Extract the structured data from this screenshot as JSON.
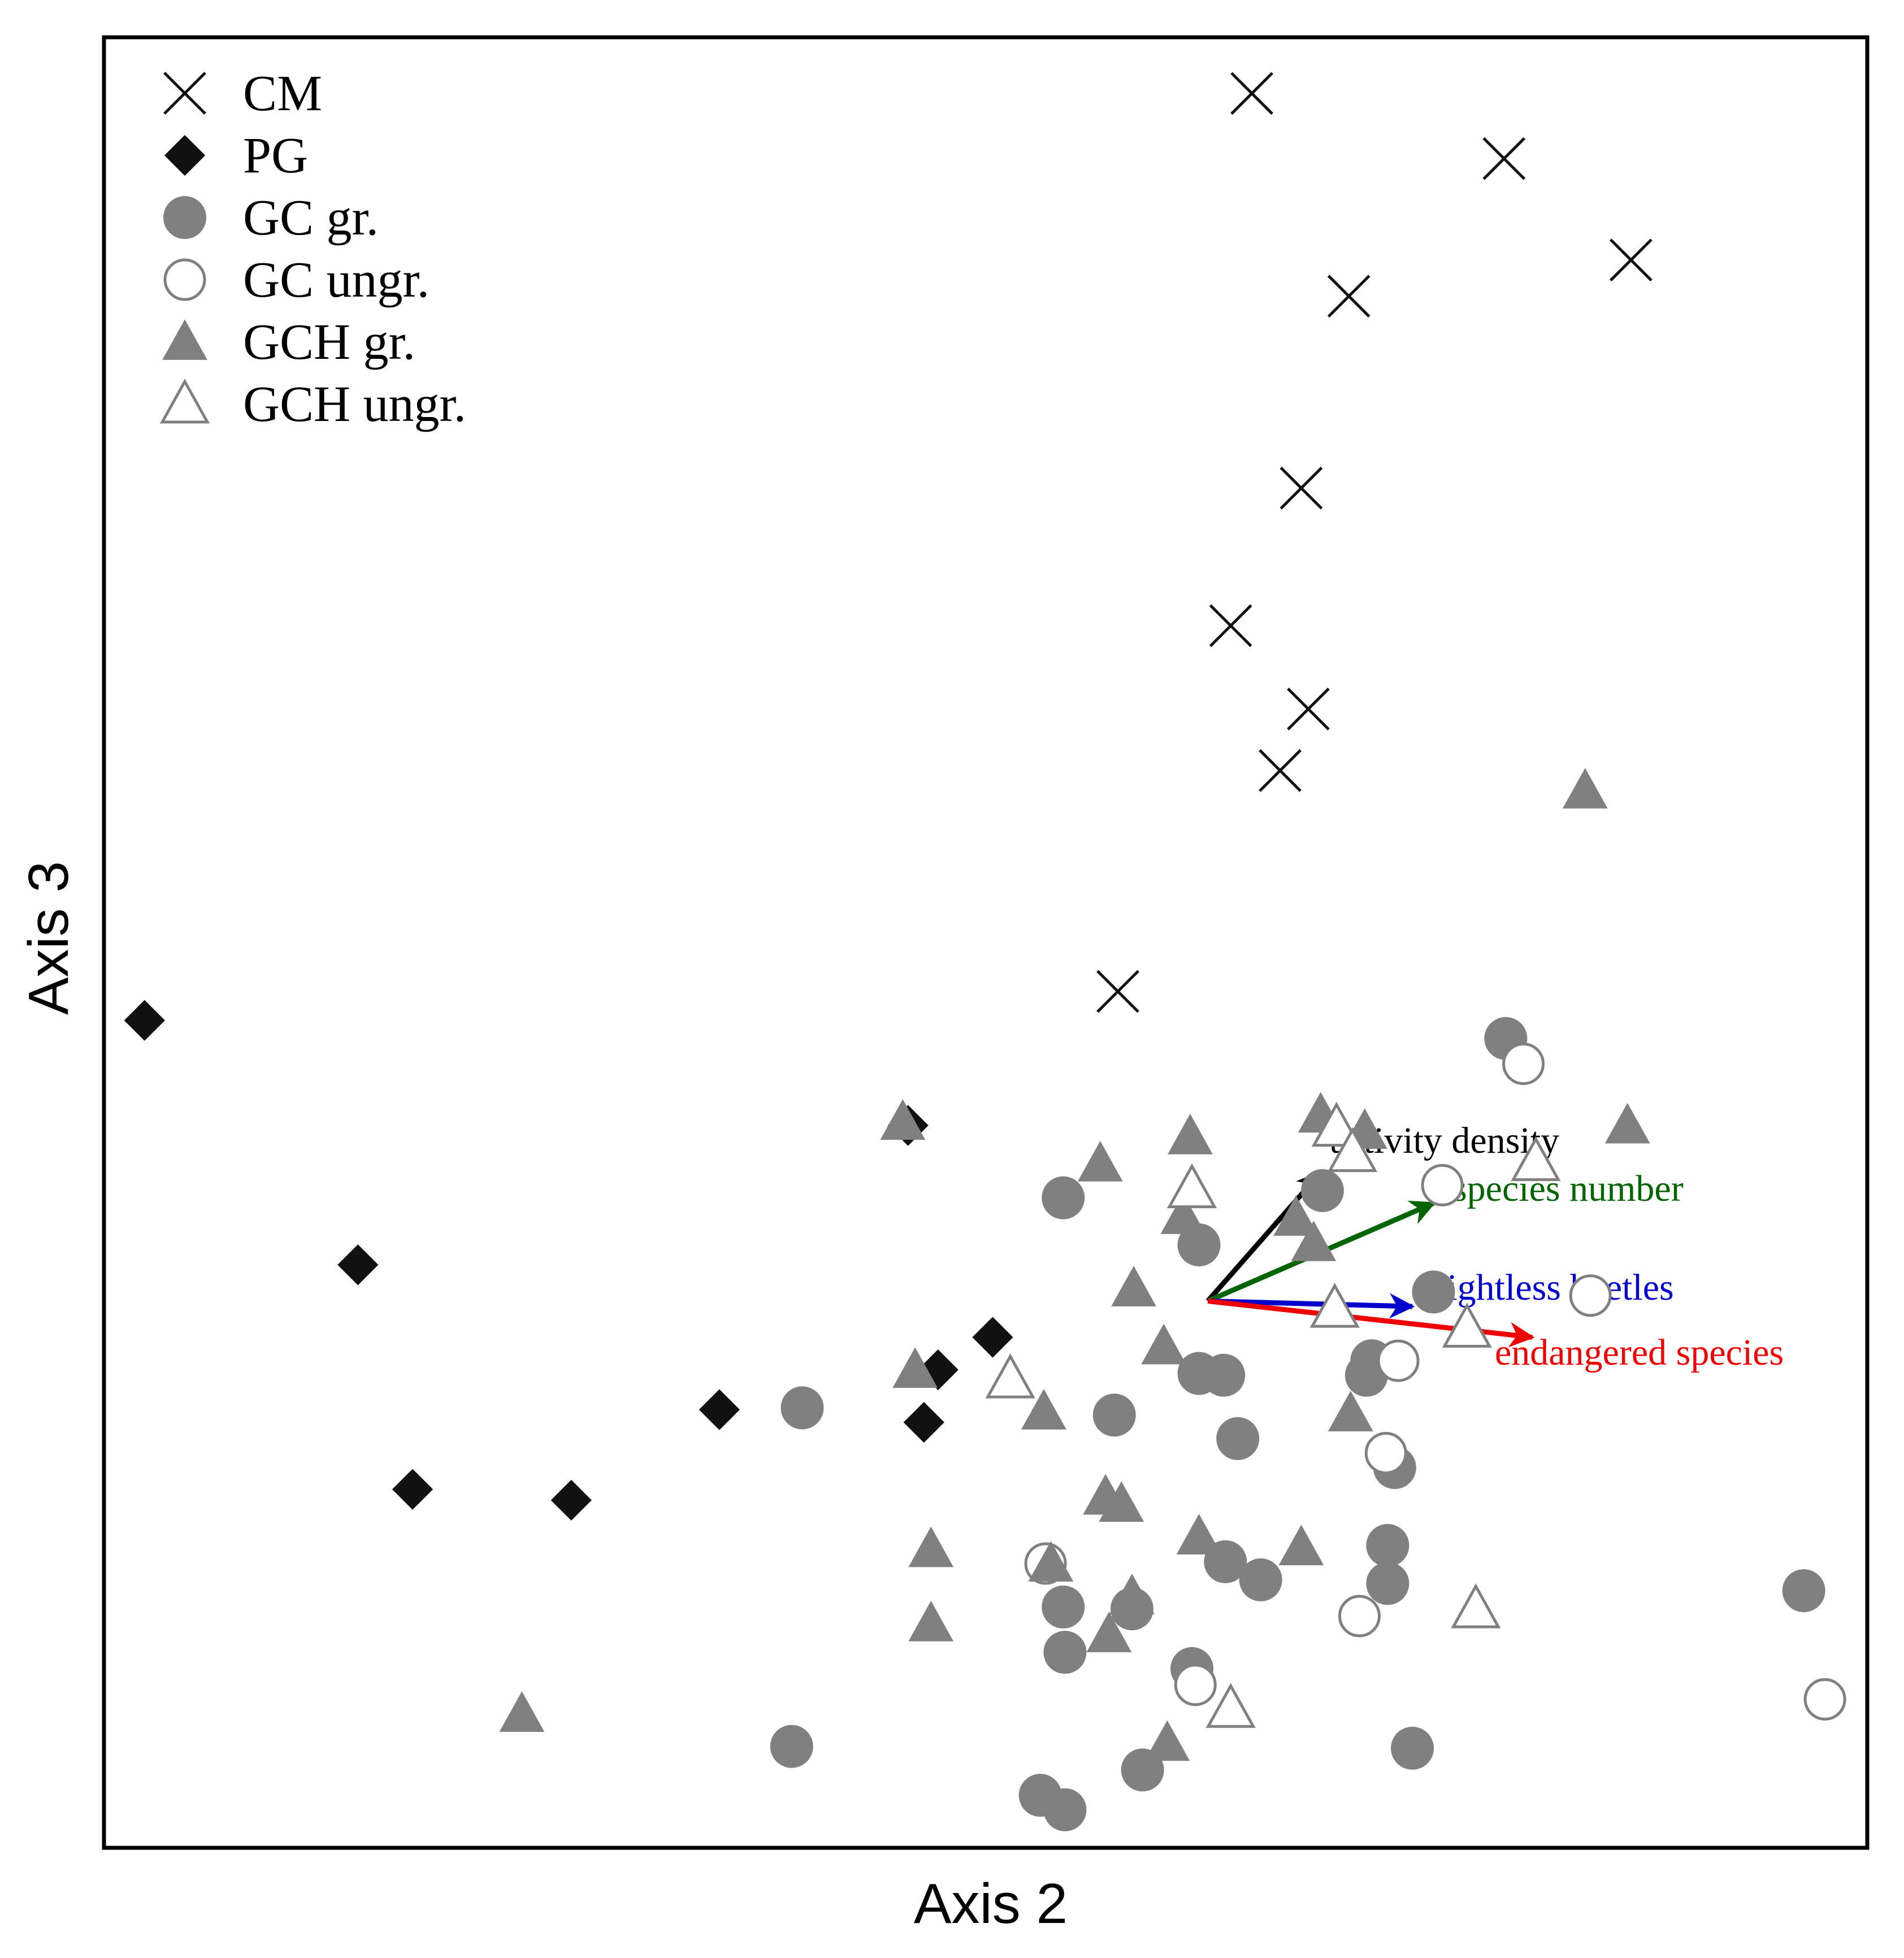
{
  "chart_data": {
    "type": "scatter",
    "title": "",
    "xlabel": "Axis 2",
    "ylabel": "Axis 3",
    "xlim": [
      0,
      100
    ],
    "ylim": [
      0,
      100
    ],
    "ticks": "none",
    "legend_position": "top-left",
    "legend": [
      {
        "label": "CM",
        "symbol": "cross"
      },
      {
        "label": "PG",
        "symbol": "diamond"
      },
      {
        "label": "GC gr.",
        "symbol": "circle-filled"
      },
      {
        "label": "GC ungr.",
        "symbol": "circle-open"
      },
      {
        "label": "GCH gr.",
        "symbol": "triangle-filled"
      },
      {
        "label": "GCH ungr.",
        "symbol": "triangle-open"
      }
    ],
    "colors": {
      "filled": "#808080",
      "open_stroke": "#808080",
      "black": "#111111"
    },
    "series": [
      {
        "name": "CM",
        "symbol": "cross",
        "points": [
          [
            65.1,
            96.9
          ],
          [
            79.4,
            93.3
          ],
          [
            86.6,
            87.7
          ],
          [
            70.6,
            85.7
          ],
          [
            67.9,
            75.1
          ],
          [
            63.9,
            67.5
          ],
          [
            68.3,
            62.9
          ],
          [
            66.7,
            59.5
          ],
          [
            57.5,
            47.3
          ]
        ]
      },
      {
        "name": "PG",
        "symbol": "diamond",
        "points": [
          [
            2.3,
            45.7
          ],
          [
            14.4,
            32.2
          ],
          [
            17.5,
            19.8
          ],
          [
            26.5,
            19.2
          ],
          [
            34.9,
            24.2
          ],
          [
            45.6,
            39.9
          ],
          [
            50.4,
            28.2
          ],
          [
            47.3,
            26.4
          ],
          [
            46.5,
            23.5
          ]
        ]
      },
      {
        "name": "GC gr.",
        "symbol": "circle-filled",
        "points": [
          [
            54.4,
            35.9
          ],
          [
            62.1,
            33.3
          ],
          [
            69.1,
            36.3
          ],
          [
            75.4,
            30.7
          ],
          [
            63.5,
            26.1
          ],
          [
            57.3,
            23.9
          ],
          [
            71.9,
            26.9
          ],
          [
            71.6,
            26.1
          ],
          [
            62.1,
            26.2
          ],
          [
            64.3,
            22.6
          ],
          [
            79.5,
            44.7
          ],
          [
            39.6,
            24.3
          ],
          [
            73.2,
            21.0
          ],
          [
            72.8,
            16.7
          ],
          [
            58.3,
            13.2
          ],
          [
            54.4,
            13.3
          ],
          [
            63.6,
            15.8
          ],
          [
            65.6,
            14.8
          ],
          [
            54.5,
            10.8
          ],
          [
            61.7,
            9.9
          ],
          [
            72.8,
            14.6
          ],
          [
            96.4,
            14.2
          ],
          [
            39.0,
            5.6
          ],
          [
            53.1,
            2.9
          ],
          [
            54.5,
            2.1
          ],
          [
            58.9,
            4.3
          ],
          [
            74.2,
            5.5
          ]
        ]
      },
      {
        "name": "GC ungr.",
        "symbol": "circle-open",
        "points": [
          [
            80.5,
            43.3
          ],
          [
            75.9,
            36.6
          ],
          [
            73.4,
            26.9
          ],
          [
            72.7,
            21.8
          ],
          [
            53.4,
            15.7
          ],
          [
            84.3,
            30.5
          ],
          [
            71.2,
            12.8
          ],
          [
            61.9,
            9.0
          ],
          [
            97.6,
            8.2
          ]
        ]
      },
      {
        "name": "GCH gr.",
        "symbol": "triangle-filled",
        "points": [
          [
            84.0,
            58.4
          ],
          [
            69.0,
            40.5
          ],
          [
            71.5,
            39.6
          ],
          [
            61.6,
            39.3
          ],
          [
            56.5,
            37.8
          ],
          [
            61.2,
            34.9
          ],
          [
            67.6,
            34.8
          ],
          [
            68.6,
            33.4
          ],
          [
            86.4,
            39.9
          ],
          [
            45.3,
            40.1
          ],
          [
            58.4,
            30.9
          ],
          [
            60.1,
            27.7
          ],
          [
            46.0,
            26.4
          ],
          [
            53.3,
            24.1
          ],
          [
            70.7,
            24.0
          ],
          [
            56.8,
            19.4
          ],
          [
            57.7,
            19.0
          ],
          [
            62.1,
            17.2
          ],
          [
            67.9,
            16.6
          ],
          [
            46.9,
            16.5
          ],
          [
            53.7,
            15.7
          ],
          [
            58.3,
            13.9
          ],
          [
            46.9,
            12.4
          ],
          [
            57.0,
            11.8
          ],
          [
            23.7,
            7.4
          ],
          [
            60.3,
            5.8
          ]
        ]
      },
      {
        "name": "GCH ungr.",
        "symbol": "triangle-open",
        "points": [
          [
            69.9,
            39.8
          ],
          [
            70.8,
            38.4
          ],
          [
            81.2,
            37.9
          ],
          [
            61.7,
            36.4
          ],
          [
            51.4,
            25.9
          ],
          [
            69.8,
            29.8
          ],
          [
            77.3,
            28.7
          ],
          [
            77.8,
            13.2
          ],
          [
            63.9,
            7.7
          ]
        ]
      }
    ],
    "vectors": [
      {
        "label": "activity density",
        "color": "#000000",
        "from": [
          62.6,
          30.2
        ],
        "to": [
          69.0,
          37.3
        ]
      },
      {
        "label": "species number",
        "color": "#006400",
        "from": [
          62.6,
          30.2
        ],
        "to": [
          75.4,
          35.6
        ]
      },
      {
        "label": "flightless beetles",
        "color": "#0000cc",
        "from": [
          62.6,
          30.2
        ],
        "to": [
          74.2,
          29.9
        ]
      },
      {
        "label": "endangered species",
        "color": "#ee0000",
        "from": [
          62.6,
          30.2
        ],
        "to": [
          81.0,
          28.2
        ]
      }
    ]
  }
}
